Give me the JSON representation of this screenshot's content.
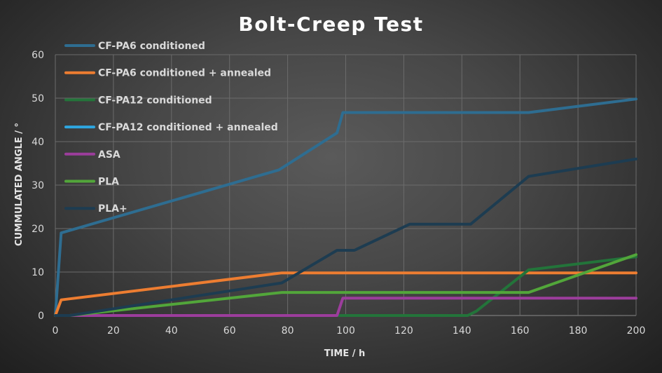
{
  "chart_data": {
    "type": "line",
    "title": "Bolt-Creep Test",
    "xlabel": "TIME / h",
    "ylabel": "CUMMULATED ANGLE / °",
    "xlim": [
      0,
      200
    ],
    "ylim": [
      0,
      60
    ],
    "xticks": [
      "0",
      "20",
      "40",
      "60",
      "80",
      "100",
      "120",
      "140",
      "160",
      "180",
      "200"
    ],
    "yticks": [
      "0",
      "10",
      "20",
      "30",
      "40",
      "50",
      "60"
    ],
    "grid": true,
    "legend_position": "top-left",
    "series": [
      {
        "name": "CF-PA6 conditioned",
        "color": "#2e6d91",
        "points": [
          [
            0,
            0
          ],
          [
            2,
            19
          ],
          [
            77,
            33.5
          ],
          [
            97,
            42
          ],
          [
            99,
            46.7
          ],
          [
            163,
            46.7
          ],
          [
            200,
            49.8
          ]
        ]
      },
      {
        "name": "CF-PA6 conditioned + annealed",
        "color": "#ed7d31",
        "points": [
          [
            0,
            0
          ],
          [
            2,
            3.6
          ],
          [
            78,
            9.8
          ],
          [
            200,
            9.8
          ]
        ]
      },
      {
        "name": "CF-PA12 conditioned",
        "color": "#23743a",
        "points": [
          [
            0,
            0
          ],
          [
            142,
            0
          ],
          [
            145,
            1
          ],
          [
            163,
            10.5
          ],
          [
            200,
            13.5
          ]
        ]
      },
      {
        "name": "CF-PA12 conditioned + annealed",
        "color": "#2ea6e0",
        "points": []
      },
      {
        "name": "ASA",
        "color": "#9c3d9c",
        "points": [
          [
            0,
            0
          ],
          [
            97,
            0
          ],
          [
            99,
            4
          ],
          [
            200,
            4
          ]
        ]
      },
      {
        "name": "PLA",
        "color": "#52a63a",
        "points": [
          [
            0,
            0
          ],
          [
            5,
            0
          ],
          [
            78,
            5.3
          ],
          [
            163,
            5.3
          ],
          [
            200,
            14
          ]
        ]
      },
      {
        "name": "PLA+",
        "color": "#1d3c51",
        "points": [
          [
            0,
            0
          ],
          [
            5,
            0
          ],
          [
            78,
            7.5
          ],
          [
            97,
            15
          ],
          [
            103,
            15
          ],
          [
            122,
            21
          ],
          [
            143,
            21
          ],
          [
            163,
            32
          ],
          [
            200,
            36
          ]
        ]
      }
    ]
  }
}
